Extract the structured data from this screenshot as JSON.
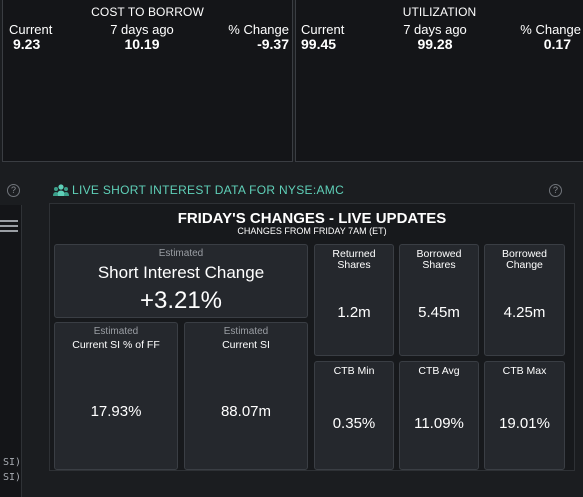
{
  "ctb": {
    "title": "COST TO BORROW",
    "current_label": "Current",
    "current_value": "9.23",
    "week_label": "7 days ago",
    "week_value": "10.19",
    "change_label": "% Change",
    "change_value": "-9.37"
  },
  "util": {
    "title": "UTILIZATION",
    "current_label": "Current",
    "current_value": "99.45",
    "week_label": "7 days ago",
    "week_value": "99.28",
    "change_label": "% Change",
    "change_value": "0.17"
  },
  "section": {
    "title": "LIVE SHORT INTEREST DATA FOR NYSE:AMC"
  },
  "rail": {
    "line1": "SI)",
    "line2": "SI)"
  },
  "help": {
    "glyph": "?"
  },
  "main": {
    "title": "FRIDAY'S CHANGES - LIVE UPDATES",
    "subtitle": "CHANGES FROM FRIDAY 7AM (ET)",
    "short_interest": {
      "est": "Estimated",
      "label": "Short Interest Change",
      "value": "+3.21%"
    },
    "si_ff": {
      "est": "Estimated",
      "label": "Current SI % of FF",
      "value": "17.93%"
    },
    "current_si": {
      "est": "Estimated",
      "label": "Current SI",
      "value": "88.07m"
    },
    "returned": {
      "label1": "Returned",
      "label2": "Shares",
      "value": "1.2m"
    },
    "borrowed": {
      "label1": "Borrowed",
      "label2": "Shares",
      "value": "5.45m"
    },
    "borrowed_change": {
      "label1": "Borrowed",
      "label2": "Change",
      "value": "4.25m"
    },
    "ctb_min": {
      "label": "CTB Min",
      "value": "0.35%"
    },
    "ctb_avg": {
      "label": "CTB Avg",
      "value": "11.09%"
    },
    "ctb_max": {
      "label": "CTB Max",
      "value": "19.01%"
    }
  },
  "colors": {
    "accent": "#5fd0b8",
    "background": "#1b1d20",
    "card": "#25282d"
  }
}
